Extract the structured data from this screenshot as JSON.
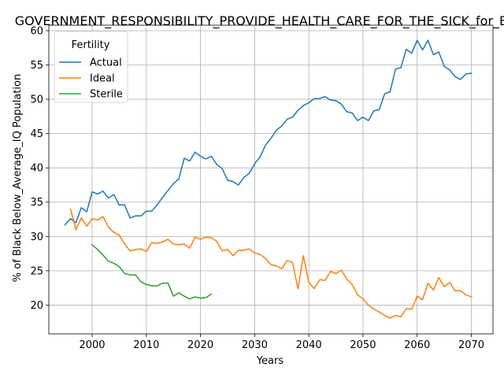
{
  "chart_data": {
    "type": "line",
    "title": "GOVERNMENT_RESPONSIBILITY_PROVIDE_HEALTH_CARE_FOR_THE_SICK_for_Black",
    "xlabel": "Years",
    "ylabel": "% of Black Below_Average_IQ Population",
    "xlim": [
      1992,
      2074
    ],
    "ylim": [
      15.8,
      60.8
    ],
    "xticks": [
      2000,
      2010,
      2020,
      2030,
      2040,
      2050,
      2060,
      2070
    ],
    "yticks": [
      20,
      25,
      30,
      35,
      40,
      45,
      50,
      55,
      60
    ],
    "grid": true,
    "legend": {
      "title": "Fertility",
      "placement": "top-left",
      "entries": [
        "Actual",
        "Ideal",
        "Sterile"
      ]
    },
    "series": [
      {
        "name": "Actual",
        "color": "#1f77b4",
        "x": [
          1995,
          1996,
          1997,
          1998,
          1999,
          2000,
          2001,
          2002,
          2003,
          2004,
          2005,
          2006,
          2007,
          2008,
          2009,
          2010,
          2011,
          2012,
          2013,
          2014,
          2015,
          2016,
          2017,
          2018,
          2019,
          2020,
          2021,
          2022,
          2023,
          2024,
          2025,
          2026,
          2027,
          2028,
          2029,
          2030,
          2031,
          2032,
          2033,
          2034,
          2035,
          2036,
          2037,
          2038,
          2039,
          2040,
          2041,
          2042,
          2043,
          2044,
          2045,
          2046,
          2047,
          2048,
          2049,
          2050,
          2051,
          2052,
          2053,
          2054,
          2055,
          2056,
          2057,
          2058,
          2059,
          2060,
          2061,
          2062,
          2063,
          2064,
          2065,
          2066,
          2067,
          2068,
          2069,
          2070
        ],
        "y": [
          31.7,
          32.6,
          32.0,
          34.2,
          33.6,
          36.5,
          36.2,
          36.6,
          35.6,
          36.1,
          34.6,
          34.6,
          32.7,
          33.0,
          33.0,
          33.7,
          33.7,
          34.6,
          35.7,
          36.7,
          37.7,
          38.4,
          41.4,
          41.0,
          42.3,
          41.7,
          41.3,
          41.7,
          40.5,
          39.9,
          38.2,
          38.0,
          37.5,
          38.6,
          39.2,
          40.6,
          41.6,
          43.3,
          44.3,
          45.5,
          46.1,
          47.1,
          47.4,
          48.4,
          49.1,
          49.5,
          50.1,
          50.1,
          50.4,
          49.9,
          49.8,
          49.3,
          48.2,
          48.0,
          46.9,
          47.4,
          46.9,
          48.3,
          48.5,
          50.8,
          51.1,
          54.4,
          54.6,
          57.3,
          56.7,
          58.6,
          57.2,
          58.6,
          56.5,
          56.9,
          54.8,
          54.3,
          53.3,
          52.9,
          53.7,
          53.8
        ]
      },
      {
        "name": "Ideal",
        "color": "#ff7f0e",
        "x": [
          1996,
          1997,
          1998,
          1999,
          2000,
          2001,
          2002,
          2003,
          2004,
          2005,
          2006,
          2007,
          2008,
          2009,
          2010,
          2011,
          2012,
          2013,
          2014,
          2015,
          2016,
          2017,
          2018,
          2019,
          2020,
          2021,
          2022,
          2023,
          2024,
          2025,
          2026,
          2027,
          2028,
          2029,
          2030,
          2031,
          2032,
          2033,
          2034,
          2035,
          2036,
          2037,
          2038,
          2039,
          2040,
          2041,
          2042,
          2043,
          2044,
          2045,
          2046,
          2047,
          2048,
          2049,
          2050,
          2051,
          2052,
          2053,
          2054,
          2055,
          2056,
          2057,
          2058,
          2059,
          2060,
          2061,
          2062,
          2063,
          2064,
          2065,
          2066,
          2067,
          2068,
          2069,
          2070
        ],
        "y": [
          34.0,
          31.0,
          32.7,
          31.5,
          32.6,
          32.4,
          32.9,
          31.4,
          30.6,
          30.2,
          28.9,
          27.9,
          28.1,
          28.2,
          27.8,
          29.1,
          29.0,
          29.2,
          29.6,
          28.9,
          28.8,
          28.9,
          28.3,
          29.9,
          29.6,
          29.9,
          29.8,
          29.3,
          27.9,
          28.1,
          27.2,
          28.0,
          28.0,
          28.2,
          27.6,
          27.4,
          26.8,
          25.9,
          25.7,
          25.3,
          26.5,
          26.2,
          22.4,
          27.2,
          23.3,
          22.4,
          23.7,
          23.6,
          24.9,
          24.6,
          25.1,
          23.8,
          23.0,
          21.5,
          20.9,
          20.0,
          19.4,
          19.0,
          18.5,
          18.1,
          18.5,
          18.3,
          19.5,
          19.4,
          21.3,
          20.8,
          23.2,
          22.2,
          24.0,
          22.7,
          23.3,
          22.1,
          22.1,
          21.5,
          21.2
        ]
      },
      {
        "name": "Sterile",
        "color": "#2ca02c",
        "x": [
          2000,
          2001,
          2002,
          2003,
          2004,
          2005,
          2006,
          2007,
          2008,
          2009,
          2010,
          2011,
          2012,
          2013,
          2014,
          2015,
          2016,
          2017,
          2018,
          2019,
          2020,
          2021,
          2022
        ],
        "y": [
          28.8,
          28.1,
          27.3,
          26.4,
          26.1,
          25.6,
          24.6,
          24.4,
          24.4,
          23.4,
          23.0,
          22.8,
          22.8,
          23.2,
          23.2,
          21.3,
          21.8,
          21.3,
          20.9,
          21.2,
          21.0,
          21.1,
          21.6
        ]
      }
    ]
  }
}
